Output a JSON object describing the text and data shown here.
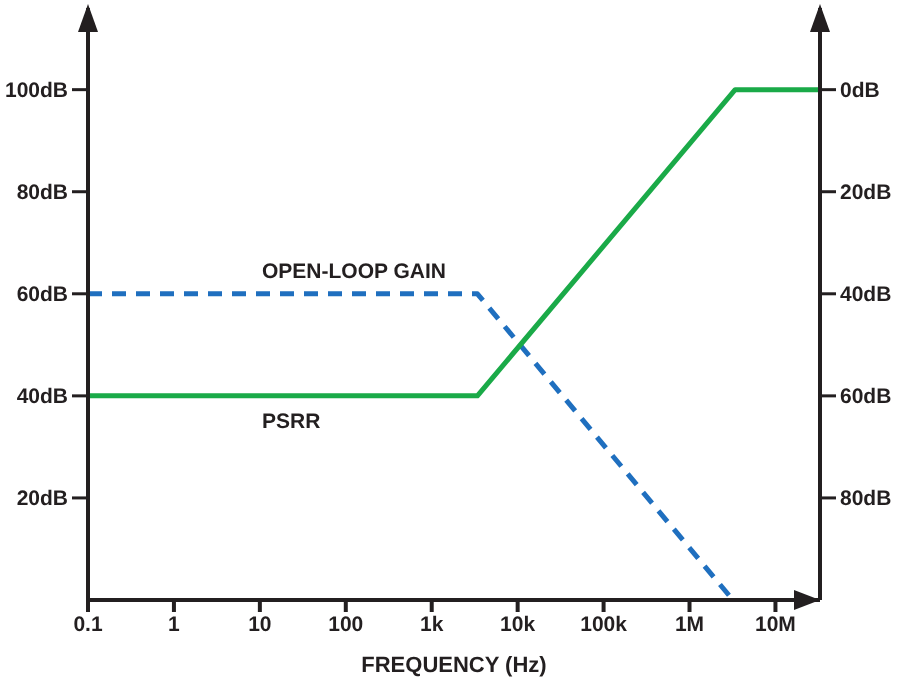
{
  "chart_data": {
    "type": "line",
    "xlabel": "FREQUENCY (Hz)",
    "log": "x",
    "xlim": [
      0.1,
      33000000
    ],
    "xticks": [
      {
        "value": 0.1,
        "label": "0.1"
      },
      {
        "value": 1,
        "label": "1"
      },
      {
        "value": 10,
        "label": "10"
      },
      {
        "value": 100,
        "label": "100"
      },
      {
        "value": 1000,
        "label": "1k"
      },
      {
        "value": 10000,
        "label": "10k"
      },
      {
        "value": 100000,
        "label": "100k"
      },
      {
        "value": 1000000,
        "label": "1M"
      },
      {
        "value": 10000000,
        "label": "10M"
      }
    ],
    "ylim": [
      0,
      116
    ],
    "yticks": [
      {
        "value": 20,
        "label": "20dB"
      },
      {
        "value": 40,
        "label": "40dB"
      },
      {
        "value": 60,
        "label": "60dB"
      },
      {
        "value": 80,
        "label": "80dB"
      },
      {
        "value": 100,
        "label": "100dB"
      }
    ],
    "y2lim": [
      100,
      -16
    ],
    "y2ticks": [
      {
        "value": 0,
        "label": "0dB"
      },
      {
        "value": 20,
        "label": "20dB"
      },
      {
        "value": 40,
        "label": "40dB"
      },
      {
        "value": 60,
        "label": "60dB"
      },
      {
        "value": 80,
        "label": "80dB"
      }
    ],
    "marker": "none",
    "series": [
      {
        "name": "OPEN-LOOP GAIN",
        "color": "#1f6fbf",
        "line_style": "dashed",
        "x": [
          0.1,
          3400,
          3200000
        ],
        "values": [
          60,
          60,
          0
        ]
      },
      {
        "name": "PSRR",
        "color": "#1aaa48",
        "line_style": "solid",
        "axis": "y2",
        "x": [
          0.1,
          3400,
          3400000,
          33000000
        ],
        "values": [
          60,
          60,
          0,
          0
        ]
      }
    ]
  }
}
